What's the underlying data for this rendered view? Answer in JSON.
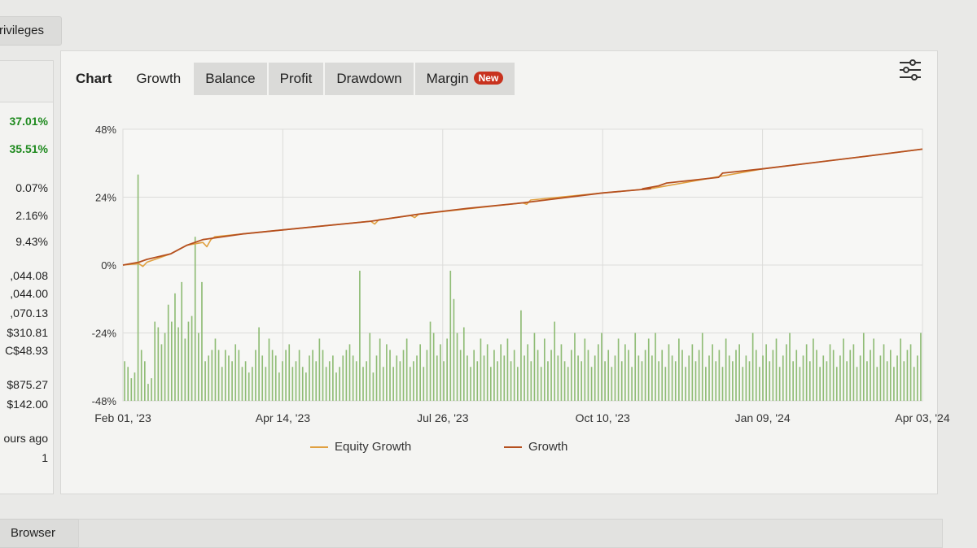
{
  "top_tab": {
    "label": "rivileges"
  },
  "left_stats": [
    {
      "value": "37.01%",
      "green": true
    },
    {
      "value": "35.51%",
      "green": true
    },
    {
      "value": "0.07%",
      "green": false
    },
    {
      "value": "2.16%",
      "green": false
    },
    {
      "value": "9.43%",
      "green": false
    },
    {
      "value": ",044.08",
      "green": false
    },
    {
      "value": ",044.00",
      "green": false
    },
    {
      "value": ",070.13",
      "green": false
    },
    {
      "value": "$310.81",
      "green": false
    },
    {
      "value": "C$48.93",
      "green": false
    },
    {
      "value": "$875.27",
      "green": false
    },
    {
      "value": "$142.00",
      "green": false
    },
    {
      "value": "ours ago",
      "green": false
    },
    {
      "value": "1",
      "green": false
    }
  ],
  "tabs": {
    "chart_label": "Chart",
    "items": [
      "Growth",
      "Balance",
      "Profit",
      "Drawdown",
      "Margin"
    ],
    "active": "Growth",
    "new_badge": "New"
  },
  "icons": {
    "settings": "sliders-icon"
  },
  "colors": {
    "growth_line": "#b5501f",
    "equity_line": "#e0a040",
    "bars": "#8fbc75",
    "badge": "#c8321e"
  },
  "chart_data": {
    "type": "line",
    "title": "",
    "xlabel": "",
    "ylabel": "",
    "ylim": [
      -48,
      48
    ],
    "y_ticks": [
      "48%",
      "24%",
      "0%",
      "-24%",
      "-48%"
    ],
    "x_ticks": [
      "Feb 01, '23",
      "Apr 14, '23",
      "Jul 26, '23",
      "Oct 10, '23",
      "Jan 09, '24",
      "Apr 03, '24"
    ],
    "grid": true,
    "legend_position": "bottom",
    "series": [
      {
        "name": "Equity Growth",
        "style": "line",
        "x": [
          0,
          0.02,
          0.025,
          0.03,
          0.06,
          0.08,
          0.1,
          0.105,
          0.11,
          0.115,
          0.15,
          0.22,
          0.31,
          0.315,
          0.32,
          0.36,
          0.365,
          0.37,
          0.5,
          0.505,
          0.51,
          0.6,
          0.66,
          0.8,
          0.93,
          1.0
        ],
        "values": [
          0,
          0.5,
          -0.5,
          1,
          4,
          7,
          8,
          6.5,
          9,
          10,
          11,
          13,
          15.5,
          14.5,
          16,
          17.5,
          16.8,
          18,
          22,
          21.5,
          23,
          25.5,
          27,
          34,
          38.5,
          41
        ]
      },
      {
        "name": "Growth",
        "style": "line",
        "x": [
          0,
          0.02,
          0.03,
          0.06,
          0.08,
          0.1,
          0.15,
          0.22,
          0.31,
          0.37,
          0.43,
          0.5,
          0.6,
          0.66,
          0.65,
          0.67,
          0.68,
          0.745,
          0.75,
          0.8,
          0.93,
          1.0
        ],
        "values": [
          0,
          1,
          2,
          4,
          7,
          9,
          11,
          13,
          15.5,
          18,
          20,
          22,
          25.5,
          27,
          27,
          28,
          29,
          31,
          32.5,
          34,
          38.5,
          41
        ]
      },
      {
        "name": "",
        "style": "bar",
        "values": [
          -34,
          -36,
          -40,
          -38,
          32,
          -30,
          -34,
          -42,
          -40,
          -20,
          -22,
          -28,
          -24,
          -14,
          -20,
          -10,
          -22,
          -6,
          -26,
          -20,
          -18,
          10,
          -24,
          -6,
          -34,
          -32,
          -30,
          -26,
          -30,
          -36,
          -30,
          -32,
          -34,
          -28,
          -30,
          -36,
          -34,
          -38,
          -36,
          -30,
          -22,
          -32,
          -36,
          -26,
          -30,
          -32,
          -38,
          -34,
          -30,
          -28,
          -36,
          -34,
          -30,
          -36,
          -38,
          -32,
          -30,
          -34,
          -26,
          -30,
          -36,
          -34,
          -32,
          -38,
          -36,
          -32,
          -30,
          -28,
          -32,
          -34,
          -2,
          -36,
          -34,
          -24,
          -38,
          -32,
          -26,
          -36,
          -28,
          -30,
          -36,
          -32,
          -34,
          -30,
          -26,
          -36,
          -34,
          -32,
          -28,
          -36,
          -30,
          -20,
          -24,
          -32,
          -28,
          -34,
          -26,
          -2,
          -12,
          -24,
          -30,
          -22,
          -32,
          -36,
          -30,
          -34,
          -26,
          -32,
          -28,
          -36,
          -30,
          -34,
          -28,
          -32,
          -26,
          -34,
          -30,
          -36,
          -16,
          -32,
          -28,
          -34,
          -24,
          -30,
          -36,
          -26,
          -34,
          -30,
          -20,
          -32,
          -28,
          -34,
          -36,
          -30,
          -24,
          -32,
          -34,
          -26,
          -30,
          -36,
          -32,
          -28,
          -24,
          -34,
          -30,
          -36,
          -32,
          -26,
          -34,
          -28,
          -30,
          -36,
          -24,
          -32,
          -34,
          -30,
          -26,
          -32,
          -24,
          -34,
          -30,
          -36,
          -28,
          -32,
          -34,
          -26,
          -30,
          -36,
          -32,
          -28,
          -34,
          -30,
          -24,
          -36,
          -32,
          -28,
          -34,
          -30,
          -36,
          -26,
          -32,
          -34,
          -30,
          -28,
          -36,
          -32,
          -34,
          -24,
          -30,
          -36,
          -32,
          -28,
          -34,
          -30,
          -26,
          -36,
          -32,
          -28,
          -24,
          -34,
          -30,
          -36,
          -32,
          -28,
          -34,
          -26,
          -30,
          -36,
          -32,
          -34,
          -28,
          -30,
          -36,
          -32,
          -26,
          -34,
          -30,
          -28,
          -36,
          -32,
          -24,
          -34,
          -30,
          -26,
          -36,
          -32,
          -28,
          -34,
          -30,
          -36,
          -32,
          -26,
          -34,
          -30,
          -28,
          -36,
          -32,
          -24
        ]
      }
    ]
  },
  "bottom_tab": {
    "label": "Browser"
  }
}
